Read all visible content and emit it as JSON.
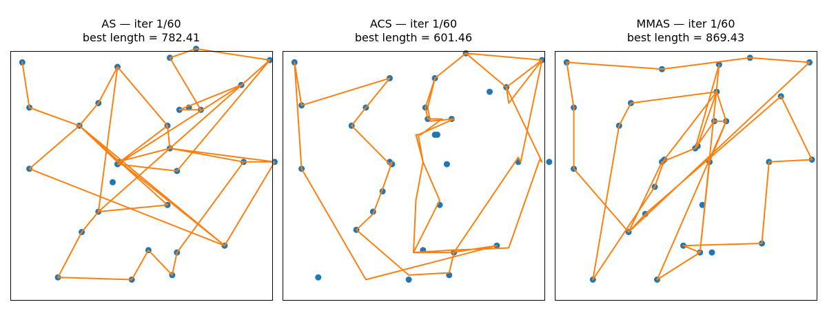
{
  "colors": {
    "city": "#1f77b4",
    "route": "#ff7f0e",
    "frame": "#000000",
    "background": "#ffffff"
  },
  "chart_data": [
    {
      "type": "scatter",
      "title_line1": "AS — iter 1/60",
      "title_line2": "best length = 782.41",
      "xlabel": "",
      "ylabel": "",
      "axis_ticks": false,
      "grid": false,
      "xlim": [
        -5,
        105
      ],
      "ylim": [
        -5,
        105
      ],
      "cities": [
        [
          0,
          100
        ],
        [
          3,
          80
        ],
        [
          3,
          53
        ],
        [
          15,
          5
        ],
        [
          46,
          4
        ],
        [
          53,
          17
        ],
        [
          63,
          6
        ],
        [
          65,
          16
        ],
        [
          25,
          25
        ],
        [
          32,
          34
        ],
        [
          38,
          47
        ],
        [
          40,
          55
        ],
        [
          41,
          56
        ],
        [
          61,
          72
        ],
        [
          62,
          62
        ],
        [
          40,
          98
        ],
        [
          32,
          82
        ],
        [
          24,
          72
        ],
        [
          62,
          102
        ],
        [
          66,
          79
        ],
        [
          70,
          80
        ],
        [
          73,
          106
        ],
        [
          92,
          90
        ],
        [
          104,
          101
        ],
        [
          93,
          56
        ],
        [
          106,
          56
        ],
        [
          61,
          37
        ],
        [
          85,
          19
        ],
        [
          65,
          52
        ],
        [
          75,
          79
        ]
      ],
      "route": [
        [
          0,
          100
        ],
        [
          3,
          80
        ],
        [
          24,
          72
        ],
        [
          40,
          56
        ],
        [
          62,
          62
        ],
        [
          93,
          56
        ],
        [
          106,
          56
        ],
        [
          85,
          19
        ],
        [
          24,
          72
        ],
        [
          3,
          53
        ],
        [
          85,
          19
        ],
        [
          41,
          56
        ],
        [
          61,
          72
        ],
        [
          40,
          98
        ],
        [
          32,
          34
        ],
        [
          25,
          25
        ],
        [
          15,
          5
        ],
        [
          46,
          4
        ],
        [
          53,
          17
        ],
        [
          63,
          6
        ],
        [
          65,
          16
        ],
        [
          93,
          56
        ],
        [
          106,
          56
        ],
        [
          62,
          62
        ],
        [
          32,
          34
        ],
        [
          61,
          37
        ],
        [
          24,
          72
        ],
        [
          32,
          82
        ],
        [
          40,
          98
        ],
        [
          61,
          72
        ],
        [
          62,
          62
        ],
        [
          104,
          101
        ],
        [
          65,
          52
        ],
        [
          40,
          55
        ],
        [
          92,
          90
        ],
        [
          66,
          79
        ],
        [
          75,
          79
        ],
        [
          62,
          102
        ],
        [
          73,
          106
        ],
        [
          104,
          101
        ]
      ]
    },
    {
      "type": "scatter",
      "title_line1": "ACS — iter 1/60",
      "title_line2": "best length = 601.46",
      "xlabel": "",
      "ylabel": "",
      "axis_ticks": false,
      "grid": false,
      "xlim": [
        -5,
        105
      ],
      "ylim": [
        -5,
        105
      ],
      "route": [
        [
          0,
          100
        ],
        [
          3,
          81
        ],
        [
          40,
          93
        ],
        [
          30,
          80
        ],
        [
          24,
          72
        ],
        [
          40,
          55
        ],
        [
          41,
          56
        ],
        [
          37,
          44
        ],
        [
          33,
          33
        ],
        [
          26,
          26
        ],
        [
          48,
          6
        ],
        [
          65,
          7
        ],
        [
          67,
          16
        ],
        [
          94,
          58
        ],
        [
          95,
          56
        ],
        [
          104,
          101
        ],
        [
          89,
          89
        ],
        [
          72,
          104
        ],
        [
          59,
          93
        ],
        [
          55,
          80
        ],
        [
          56,
          75
        ],
        [
          62,
          75
        ],
        [
          53,
          68
        ],
        [
          51,
          68
        ],
        [
          54,
          56
        ],
        [
          51,
          39
        ],
        [
          50,
          16
        ],
        [
          66,
          17
        ],
        [
          90,
          18
        ],
        [
          103,
          57
        ],
        [
          104,
          56
        ],
        [
          89,
          89
        ],
        [
          90,
          82
        ],
        [
          104,
          101
        ],
        [
          72,
          104
        ],
        [
          59,
          93
        ],
        [
          56,
          80
        ],
        [
          57,
          74
        ],
        [
          67,
          75
        ],
        [
          52,
          68
        ],
        [
          54,
          56
        ],
        [
          61,
          39
        ],
        [
          50,
          16
        ],
        [
          66,
          16
        ],
        [
          85,
          19
        ],
        [
          30,
          4
        ],
        [
          3,
          53
        ],
        [
          0,
          100
        ]
      ],
      "cities": [
        [
          0,
          100
        ],
        [
          3,
          81
        ],
        [
          3,
          53
        ],
        [
          10,
          5
        ],
        [
          26,
          26
        ],
        [
          33,
          34
        ],
        [
          37,
          43
        ],
        [
          40,
          56
        ],
        [
          41,
          55
        ],
        [
          30,
          80
        ],
        [
          24,
          72
        ],
        [
          40,
          93
        ],
        [
          48,
          4
        ],
        [
          65,
          6
        ],
        [
          67,
          16
        ],
        [
          54,
          17
        ],
        [
          61,
          37
        ],
        [
          64,
          55
        ],
        [
          59,
          68
        ],
        [
          60,
          68
        ],
        [
          55,
          80
        ],
        [
          56,
          75
        ],
        [
          66,
          75
        ],
        [
          59,
          93
        ],
        [
          72,
          104
        ],
        [
          89,
          89
        ],
        [
          104,
          101
        ],
        [
          82,
          87
        ],
        [
          94,
          56
        ],
        [
          107,
          56
        ],
        [
          85,
          19
        ]
      ]
    },
    {
      "type": "scatter",
      "title_line1": "MMAS — iter 1/60",
      "title_line2": "best length = 869.43",
      "xlabel": "",
      "ylabel": "",
      "axis_ticks": false,
      "grid": false,
      "xlim": [
        -5,
        105
      ],
      "ylim": [
        -5,
        105
      ],
      "cities": [
        [
          0,
          100
        ],
        [
          3,
          80
        ],
        [
          3,
          53
        ],
        [
          11,
          4
        ],
        [
          38,
          4
        ],
        [
          56,
          16
        ],
        [
          61,
          16
        ],
        [
          49,
          19
        ],
        [
          26,
          25
        ],
        [
          33,
          33
        ],
        [
          37,
          45
        ],
        [
          40,
          56
        ],
        [
          41,
          57
        ],
        [
          57,
          37
        ],
        [
          60,
          56
        ],
        [
          40,
          97
        ],
        [
          27,
          82
        ],
        [
          22,
          72
        ],
        [
          54,
          62
        ],
        [
          55,
          63
        ],
        [
          62,
          74
        ],
        [
          67,
          74
        ],
        [
          63,
          87
        ],
        [
          64,
          99
        ],
        [
          77,
          102
        ],
        [
          102,
          100
        ],
        [
          90,
          85
        ],
        [
          103,
          57
        ],
        [
          85,
          56
        ],
        [
          82,
          20
        ]
      ],
      "route": [
        [
          0,
          100
        ],
        [
          3,
          80
        ],
        [
          3,
          53
        ],
        [
          26,
          25
        ],
        [
          40,
          56
        ],
        [
          54,
          62
        ],
        [
          64,
          99
        ],
        [
          56,
          16
        ],
        [
          60,
          56
        ],
        [
          67,
          74
        ],
        [
          62,
          74
        ],
        [
          54,
          62
        ],
        [
          55,
          63
        ],
        [
          63,
          87
        ],
        [
          27,
          82
        ],
        [
          22,
          72
        ],
        [
          11,
          4
        ],
        [
          37,
          45
        ],
        [
          41,
          57
        ],
        [
          63,
          87
        ],
        [
          67,
          74
        ],
        [
          38,
          4
        ],
        [
          56,
          16
        ],
        [
          49,
          19
        ],
        [
          82,
          20
        ],
        [
          85,
          56
        ],
        [
          103,
          57
        ],
        [
          90,
          85
        ],
        [
          33,
          33
        ],
        [
          26,
          25
        ],
        [
          102,
          100
        ],
        [
          77,
          102
        ],
        [
          40,
          97
        ],
        [
          0,
          100
        ]
      ]
    }
  ]
}
